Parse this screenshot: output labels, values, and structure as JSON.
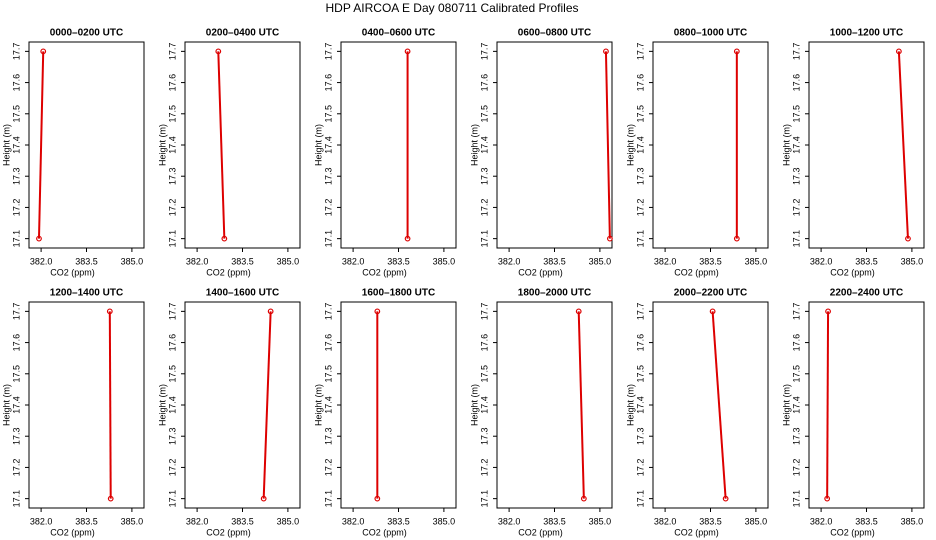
{
  "title": "HDP AIRCOA E  Day 080711  Calibrated Profiles",
  "chart_data": [
    {
      "type": "line",
      "title": "0000–0200 UTC",
      "xlabel": "CO2 (ppm)",
      "ylabel": "Height (m)",
      "color": "#dd0000",
      "x": [
        382.07,
        381.93
      ],
      "values": [
        17.7,
        17.1
      ],
      "xlim": [
        381.6,
        385.4
      ],
      "ylim": [
        17.07,
        17.73
      ],
      "xticks": [
        {
          "value": 382,
          "label": "382.0"
        },
        383.5,
        {
          "value": 385,
          "label": "385.0"
        }
      ],
      "yticks": [
        17.1,
        17.2,
        17.3,
        17.4,
        17.5,
        17.6,
        17.7
      ]
    },
    {
      "type": "line",
      "title": "0200–0400 UTC",
      "xlabel": "CO2 (ppm)",
      "ylabel": "Height (m)",
      "color": "#dd0000",
      "x": [
        382.7,
        382.9
      ],
      "values": [
        17.7,
        17.1
      ],
      "xlim": [
        381.6,
        385.4
      ],
      "ylim": [
        17.07,
        17.73
      ],
      "xticks": [
        {
          "value": 382,
          "label": "382.0"
        },
        383.5,
        {
          "value": 385,
          "label": "385.0"
        }
      ],
      "yticks": [
        17.1,
        17.2,
        17.3,
        17.4,
        17.5,
        17.6,
        17.7
      ]
    },
    {
      "type": "line",
      "title": "0400–0600 UTC",
      "xlabel": "CO2 (ppm)",
      "ylabel": "Height (m)",
      "color": "#dd0000",
      "x": [
        383.8,
        383.8
      ],
      "values": [
        17.7,
        17.1
      ],
      "xlim": [
        381.6,
        385.4
      ],
      "ylim": [
        17.07,
        17.73
      ],
      "xticks": [
        {
          "value": 382,
          "label": "382.0"
        },
        383.5,
        {
          "value": 385,
          "label": "385.0"
        }
      ],
      "yticks": [
        17.1,
        17.2,
        17.3,
        17.4,
        17.5,
        17.6,
        17.7
      ]
    },
    {
      "type": "line",
      "title": "0600–0800 UTC",
      "xlabel": "CO2 (ppm)",
      "ylabel": "Height (m)",
      "color": "#dd0000",
      "x": [
        385.2,
        385.33
      ],
      "values": [
        17.7,
        17.1
      ],
      "xlim": [
        381.6,
        385.4
      ],
      "ylim": [
        17.07,
        17.73
      ],
      "xticks": [
        {
          "value": 382,
          "label": "382.0"
        },
        383.5,
        {
          "value": 385,
          "label": "385.0"
        }
      ],
      "yticks": [
        17.1,
        17.2,
        17.3,
        17.4,
        17.5,
        17.6,
        17.7
      ]
    },
    {
      "type": "line",
      "title": "0800–1000 UTC",
      "xlabel": "CO2 (ppm)",
      "ylabel": "Height (m)",
      "color": "#dd0000",
      "x": [
        384.37,
        384.37
      ],
      "values": [
        17.7,
        17.1
      ],
      "xlim": [
        381.6,
        385.4
      ],
      "ylim": [
        17.07,
        17.73
      ],
      "xticks": [
        {
          "value": 382,
          "label": "382.0"
        },
        383.5,
        {
          "value": 385,
          "label": "385.0"
        }
      ],
      "yticks": [
        17.1,
        17.2,
        17.3,
        17.4,
        17.5,
        17.6,
        17.7
      ]
    },
    {
      "type": "line",
      "title": "1000–1200 UTC",
      "xlabel": "CO2 (ppm)",
      "ylabel": "Height (m)",
      "color": "#dd0000",
      "x": [
        384.57,
        384.87
      ],
      "values": [
        17.7,
        17.1
      ],
      "xlim": [
        381.6,
        385.4
      ],
      "ylim": [
        17.07,
        17.73
      ],
      "xticks": [
        {
          "value": 382,
          "label": "382.0"
        },
        383.5,
        {
          "value": 385,
          "label": "385.0"
        }
      ],
      "yticks": [
        17.1,
        17.2,
        17.3,
        17.4,
        17.5,
        17.6,
        17.7
      ]
    },
    {
      "type": "line",
      "title": "1200–1400 UTC",
      "xlabel": "CO2 (ppm)",
      "ylabel": "Height (m)",
      "color": "#dd0000",
      "x": [
        384.27,
        384.3
      ],
      "values": [
        17.7,
        17.1
      ],
      "xlim": [
        381.6,
        385.4
      ],
      "ylim": [
        17.07,
        17.73
      ],
      "xticks": [
        {
          "value": 382,
          "label": "382.0"
        },
        383.5,
        {
          "value": 385,
          "label": "385.0"
        }
      ],
      "yticks": [
        17.1,
        17.2,
        17.3,
        17.4,
        17.5,
        17.6,
        17.7
      ]
    },
    {
      "type": "line",
      "title": "1400–1600 UTC",
      "xlabel": "CO2 (ppm)",
      "ylabel": "Height (m)",
      "color": "#dd0000",
      "x": [
        384.43,
        384.2
      ],
      "values": [
        17.7,
        17.1
      ],
      "xlim": [
        381.6,
        385.4
      ],
      "ylim": [
        17.07,
        17.73
      ],
      "xticks": [
        {
          "value": 382,
          "label": "382.0"
        },
        383.5,
        {
          "value": 385,
          "label": "385.0"
        }
      ],
      "yticks": [
        17.1,
        17.2,
        17.3,
        17.4,
        17.5,
        17.6,
        17.7
      ]
    },
    {
      "type": "line",
      "title": "1600–1800 UTC",
      "xlabel": "CO2 (ppm)",
      "ylabel": "Height (m)",
      "color": "#dd0000",
      "x": [
        382.8,
        382.8
      ],
      "values": [
        17.7,
        17.1
      ],
      "xlim": [
        381.6,
        385.4
      ],
      "ylim": [
        17.07,
        17.73
      ],
      "xticks": [
        {
          "value": 382,
          "label": "382.0"
        },
        383.5,
        {
          "value": 385,
          "label": "385.0"
        }
      ],
      "yticks": [
        17.1,
        17.2,
        17.3,
        17.4,
        17.5,
        17.6,
        17.7
      ]
    },
    {
      "type": "line",
      "title": "1800–2000 UTC",
      "xlabel": "CO2 (ppm)",
      "ylabel": "Height (m)",
      "color": "#dd0000",
      "x": [
        384.3,
        384.47
      ],
      "values": [
        17.7,
        17.1
      ],
      "xlim": [
        381.6,
        385.4
      ],
      "ylim": [
        17.07,
        17.73
      ],
      "xticks": [
        {
          "value": 382,
          "label": "382.0"
        },
        383.5,
        {
          "value": 385,
          "label": "385.0"
        }
      ],
      "yticks": [
        17.1,
        17.2,
        17.3,
        17.4,
        17.5,
        17.6,
        17.7
      ]
    },
    {
      "type": "line",
      "title": "2000–2200 UTC",
      "xlabel": "CO2 (ppm)",
      "ylabel": "Height (m)",
      "color": "#dd0000",
      "x": [
        383.57,
        384.0
      ],
      "values": [
        17.7,
        17.1
      ],
      "xlim": [
        381.6,
        385.4
      ],
      "ylim": [
        17.07,
        17.73
      ],
      "xticks": [
        {
          "value": 382,
          "label": "382.0"
        },
        383.5,
        {
          "value": 385,
          "label": "385.0"
        }
      ],
      "yticks": [
        17.1,
        17.2,
        17.3,
        17.4,
        17.5,
        17.6,
        17.7
      ]
    },
    {
      "type": "line",
      "title": "2200–2400 UTC",
      "xlabel": "CO2 (ppm)",
      "ylabel": "Height (m)",
      "color": "#dd0000",
      "x": [
        382.23,
        382.2
      ],
      "values": [
        17.7,
        17.1
      ],
      "xlim": [
        381.6,
        385.4
      ],
      "ylim": [
        17.07,
        17.73
      ],
      "xticks": [
        {
          "value": 382,
          "label": "382.0"
        },
        383.5,
        {
          "value": 385,
          "label": "385.0"
        }
      ],
      "yticks": [
        17.1,
        17.2,
        17.3,
        17.4,
        17.5,
        17.6,
        17.7
      ]
    }
  ]
}
